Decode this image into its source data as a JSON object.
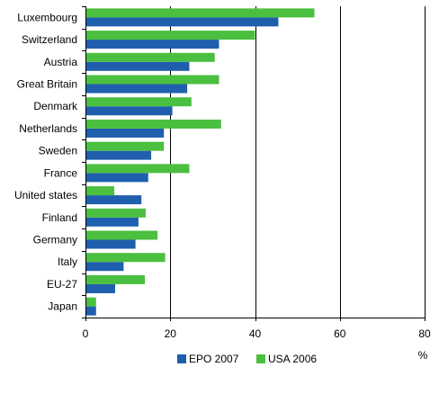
{
  "chart_data": {
    "type": "bar",
    "orientation": "horizontal",
    "categories": [
      "Luxembourg",
      "Switzerland",
      "Austria",
      "Great Britain",
      "Denmark",
      "Netherlands",
      "Sweden",
      "France",
      "United states",
      "Finland",
      "Germany",
      "Italy",
      "EU-27",
      "Japan"
    ],
    "series": [
      {
        "name": "EPO 2007",
        "color": "#1f5fad",
        "values": [
          45.5,
          31.5,
          24.5,
          24.0,
          20.5,
          18.5,
          15.5,
          14.8,
          13.2,
          12.5,
          11.8,
          9.0,
          7.0,
          2.5
        ]
      },
      {
        "name": "USA 2006",
        "color": "#4bbf3f",
        "values": [
          54.0,
          40.0,
          30.5,
          31.5,
          25.0,
          32.0,
          18.5,
          24.5,
          6.8,
          14.2,
          17.0,
          18.8,
          14.0,
          2.5
        ]
      }
    ],
    "xlim": [
      0,
      80
    ],
    "xticks": [
      "0",
      "20",
      "40",
      "60",
      "80"
    ],
    "xunit": "%",
    "grid": "vertical",
    "legend_position": "bottom"
  }
}
